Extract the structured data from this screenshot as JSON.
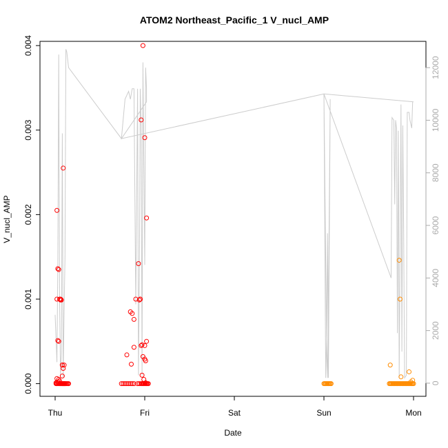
{
  "chart_data": {
    "type": "scatter",
    "title": "ATOM2 Northeast_Pacific_1 V_nucl_AMP",
    "xlabel": "Date",
    "ylabel": "V_nucl_AMP",
    "x_ticks": [
      "Thu",
      "Fri",
      "Sat",
      "Sun",
      "Mon"
    ],
    "xlim": [
      -0.05,
      4.1
    ],
    "ylim": [
      -0.00015,
      0.00405
    ],
    "y_ticks": [
      0,
      0.001,
      0.002,
      0.003,
      0.004
    ],
    "y_tick_labels": [
      "0.000",
      "0.001",
      "0.002",
      "0.003",
      "0.004"
    ],
    "y2_ticks": [
      0,
      2000,
      4000,
      6000,
      8000,
      10000,
      12000
    ],
    "y2_tick_labels": [
      "0",
      "2000",
      "4000",
      "6000",
      "8000",
      "10000",
      "12000"
    ],
    "y2lim": [
      -500,
      13000
    ],
    "grid": false,
    "legend": "none",
    "series": [
      {
        "color": "#ff0000",
        "marker": "open-circle",
        "x": [
          0.01,
          0.02,
          0.03,
          0.03,
          0.04,
          0.04,
          0.05,
          0.05,
          0.06,
          0.06,
          0.07,
          0.07,
          0.08,
          0.08,
          0.09,
          0.09,
          0.1,
          0.1,
          0.11,
          0.12,
          0.13,
          0.14,
          0.15,
          0.02,
          0.03,
          0.04,
          0.02,
          0.03,
          0.04,
          0.05,
          0.06,
          0.06,
          0.07,
          0.08,
          0.08,
          0.09,
          0.1,
          0.1,
          0.11,
          0.09,
          0.08,
          0.1,
          0.02,
          0.01,
          0.74,
          0.76,
          0.78,
          0.8,
          0.82,
          0.84,
          0.86,
          0.88,
          0.92,
          0.94,
          0.96,
          0.97,
          0.98,
          0.99,
          1.0,
          1.01,
          1.02,
          1.03,
          1.04,
          0.98,
          0.96,
          1.0,
          1.02,
          0.93,
          0.9,
          0.86,
          0.84,
          0.88,
          0.94,
          0.95,
          0.95,
          0.96,
          0.97,
          0.98,
          1.0,
          1.01,
          1.02,
          1.0,
          0.97,
          0.99,
          0.8,
          0.85,
          0.88,
          1.01
        ],
        "y": [
          0,
          0,
          0,
          2e-05,
          0,
          5e-05,
          0,
          3e-05,
          0,
          0,
          0,
          0,
          0,
          0,
          0,
          0,
          0,
          0,
          0,
          0,
          0,
          0,
          0,
          0.00205,
          0.00136,
          0.00135,
          0.001,
          0.00051,
          0.0005,
          0.001,
          0.00099,
          0.001,
          0.00099,
          0.00022,
          0.00022,
          0.00018,
          0.00022,
          0.0,
          0.0,
          0.00255,
          9e-05,
          0.0,
          6e-05,
          1e-05,
          0,
          0,
          0,
          0,
          0,
          0,
          0,
          0,
          0,
          0,
          0,
          0,
          0,
          0,
          0,
          0,
          0,
          0,
          0,
          0.004,
          0.00312,
          0.00291,
          0.00196,
          0.00142,
          0.001,
          0.00083,
          0.00085,
          0.00076,
          0.00099,
          0.001,
          0.001,
          0.00045,
          0.00046,
          0.00032,
          0.00029,
          0.00027,
          0.0005,
          0.00045,
          0.0001,
          5e-05,
          0.00034,
          0.00023,
          0.00043,
          1e-05
        ],
        "x_rounded_note": ""
      },
      {
        "color": "#ff8c00",
        "marker": "open-circle",
        "x": [
          3.0,
          3.01,
          3.02,
          3.03,
          3.04,
          3.05,
          3.06,
          3.07,
          3.08,
          3.73,
          3.74,
          3.75,
          3.76,
          3.77,
          3.78,
          3.79,
          3.8,
          3.81,
          3.82,
          3.83,
          3.84,
          3.85,
          3.86,
          3.87,
          3.88,
          3.89,
          3.9,
          3.91,
          3.92,
          3.93,
          3.94,
          3.95,
          3.96,
          3.97,
          3.98,
          3.99,
          4.0,
          3.74,
          3.84,
          3.85,
          3.86,
          3.95,
          3.99,
          3.97
        ],
        "y": [
          0,
          0,
          0,
          0,
          0,
          0,
          0,
          0,
          0,
          0,
          0,
          0,
          0,
          0,
          0,
          0,
          0,
          0,
          0,
          0,
          0,
          0,
          0,
          0,
          0,
          0,
          0,
          0,
          0,
          0,
          0,
          0,
          0,
          0,
          0,
          0,
          0,
          0.00022,
          0.00146,
          0.001,
          8e-05,
          0.00014,
          4e-05,
          2e-05
        ]
      },
      {
        "color": "#cccccc",
        "type": "line",
        "axis": "right",
        "x": [
          0.0,
          0.02,
          0.03,
          0.04,
          0.05,
          0.06,
          0.07,
          0.08,
          0.09,
          0.1,
          0.11,
          0.12,
          0.13,
          0.15,
          0.15,
          0.74,
          0.78,
          0.82,
          0.84,
          0.86,
          0.88,
          0.9,
          0.92,
          0.93,
          0.94,
          0.95,
          0.96,
          0.97,
          0.98,
          1.0,
          1.01,
          1.02,
          1.02,
          1.02,
          0.74,
          3.0,
          3.02,
          3.03,
          3.04,
          3.05,
          3.06,
          3.07,
          3.05,
          3.04,
          3.03,
          3.0,
          3.75,
          3.76,
          3.78,
          3.79,
          3.8,
          3.81,
          3.82,
          3.83,
          3.84,
          3.86,
          3.87,
          3.88,
          3.89,
          3.9,
          3.92,
          3.93,
          3.95,
          3.96,
          3.98,
          3.99,
          4.0,
          3.0
        ],
        "y": [
          2600,
          800,
          4500,
          12500,
          3000,
          300,
          1100,
          9500,
          200,
          2700,
          4800,
          12700,
          12600,
          12000,
          12000,
          9300,
          10800,
          11100,
          10800,
          11200,
          11200,
          3000,
          11200,
          300,
          4000,
          11200,
          9800,
          300,
          12200,
          4500,
          12000,
          11200,
          11200,
          10700,
          9300,
          11000,
          200,
          1800,
          5700,
          200,
          5400,
          10800,
          3000,
          200,
          1400,
          11000,
          4000,
          10100,
          10000,
          6800,
          10000,
          9700,
          1900,
          9600,
          200,
          10600,
          1200,
          9800,
          5700,
          200,
          300,
          10300,
          10300,
          10000,
          9700,
          10700,
          10700,
          11000
        ]
      }
    ]
  }
}
